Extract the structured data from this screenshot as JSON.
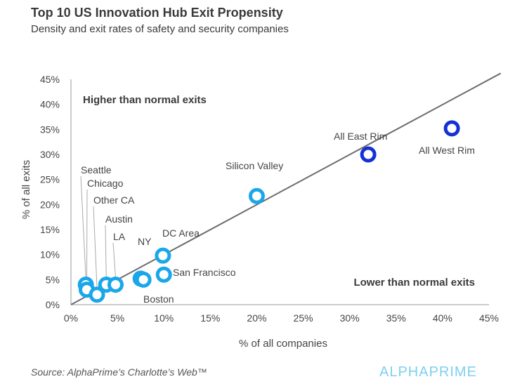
{
  "header": {
    "title": "Top 10 US Innovation Hub Exit Propensity",
    "subtitle": "Density and exit rates of safety and security companies"
  },
  "footer": {
    "source": "Source: AlphaPrime’s Charlotte’s Web™",
    "logo": "ALPHAPRIME"
  },
  "colors": {
    "hub": "#1aa7ea",
    "rim": "#1530d6",
    "trend": "#6d6d6d",
    "text": "#333333"
  },
  "chart_data": {
    "type": "scatter",
    "title": "Top 10 US Innovation Hub Exit Propensity",
    "subtitle": "Density and exit rates of safety and security companies",
    "xlabel": "% of all companies",
    "ylabel": "% of all exits",
    "xlim": [
      0,
      45
    ],
    "ylim": [
      0,
      45
    ],
    "xticks": [
      0,
      5,
      10,
      15,
      20,
      25,
      30,
      35,
      40,
      45
    ],
    "yticks": [
      0,
      5,
      10,
      15,
      20,
      25,
      30,
      35,
      40,
      45
    ],
    "tick_format": "percent",
    "grid": false,
    "trend_line": {
      "from": [
        0,
        0
      ],
      "to": [
        45,
        45
      ]
    },
    "annotations": [
      "Higher than normal exits",
      "Lower than normal exits"
    ],
    "points": [
      {
        "label": "Seattle",
        "x": 1.6,
        "y": 4.0,
        "group": "hub"
      },
      {
        "label": "Chicago",
        "x": 1.7,
        "y": 3.0,
        "group": "hub"
      },
      {
        "label": "Other CA",
        "x": 2.8,
        "y": 2.0,
        "group": "hub"
      },
      {
        "label": "Austin",
        "x": 3.8,
        "y": 4.0,
        "group": "hub"
      },
      {
        "label": "LA",
        "x": 4.8,
        "y": 4.0,
        "group": "hub"
      },
      {
        "label": "NY",
        "x": 7.5,
        "y": 5.2,
        "group": "hub"
      },
      {
        "label": "Boston",
        "x": 7.8,
        "y": 5.0,
        "group": "hub"
      },
      {
        "label": "DC Area",
        "x": 9.9,
        "y": 9.8,
        "group": "hub"
      },
      {
        "label": "San Francisco",
        "x": 10.0,
        "y": 6.0,
        "group": "hub"
      },
      {
        "label": "Silicon Valley",
        "x": 20.0,
        "y": 21.7,
        "group": "hub"
      },
      {
        "label": "All East Rim",
        "x": 32.0,
        "y": 30.0,
        "group": "rim"
      },
      {
        "label": "All West Rim",
        "x": 41.0,
        "y": 35.2,
        "group": "rim"
      }
    ]
  }
}
